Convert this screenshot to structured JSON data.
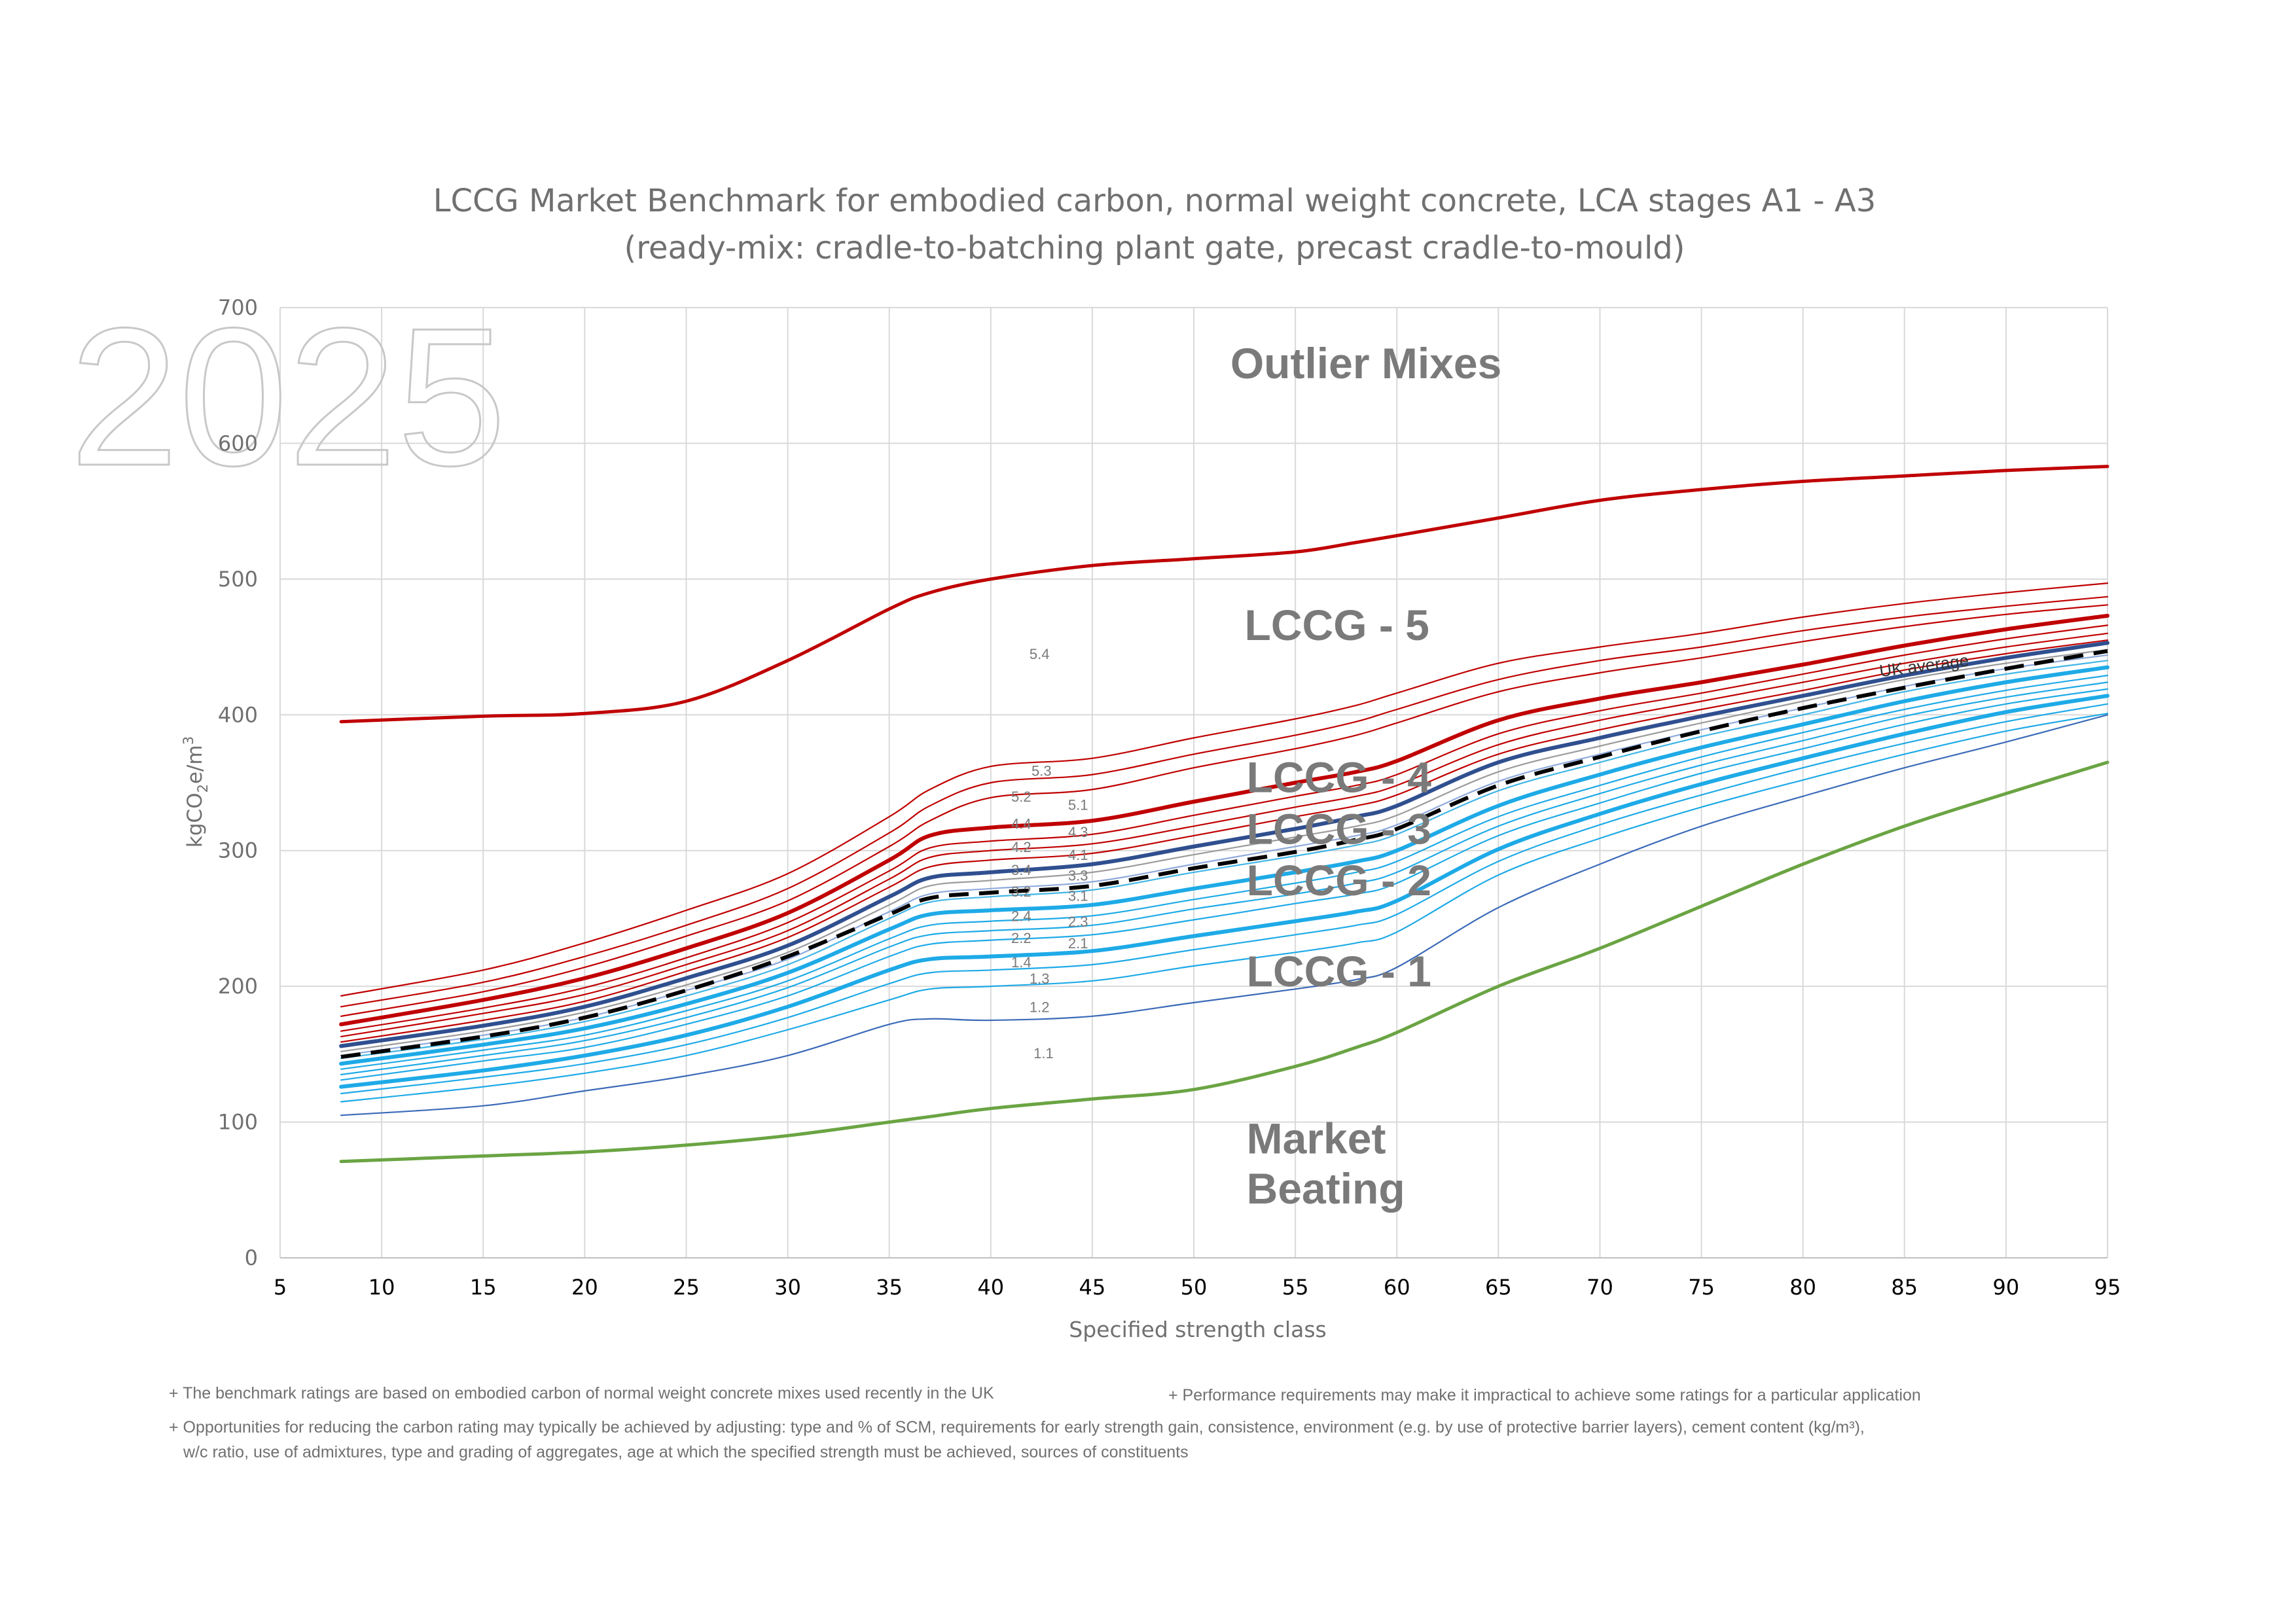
{
  "chart_data": {
    "type": "line",
    "title": "LCCG Market Benchmark for embodied carbon, normal weight concrete, LCA stages A1 - A3",
    "subtitle": "(ready-mix: cradle-to-batching plant gate, precast cradle-to-mould)",
    "xlabel": "Specified strength class",
    "ylabel": "kgCO2e/m3",
    "xlim": [
      5,
      95
    ],
    "ylim": [
      0,
      700
    ],
    "xticks": [
      "5",
      "10",
      "15",
      "20",
      "25",
      "30",
      "35",
      "40",
      "45",
      "50",
      "55",
      "60",
      "65",
      "70",
      "75",
      "80",
      "85",
      "90",
      "95"
    ],
    "yticks": [
      "0",
      "100",
      "200",
      "300",
      "400",
      "500",
      "600",
      "700"
    ],
    "grid": true,
    "watermark": "2025",
    "x": [
      8,
      15,
      20,
      25,
      30,
      35,
      37,
      40,
      45,
      50,
      55,
      58,
      60,
      65,
      70,
      75,
      80,
      85,
      90,
      95
    ],
    "series": [
      {
        "name": "Outlier boundary",
        "color": "#c00000",
        "width": 5,
        "values": [
          395,
          399,
          401,
          410,
          440,
          478,
          490,
          500,
          510,
          515,
          520,
          527,
          532,
          545,
          558,
          566,
          572,
          576,
          580,
          583
        ]
      },
      {
        "name": "5.4/5.3",
        "color": "#c00000",
        "width": 2.2,
        "values": [
          193,
          212,
          232,
          256,
          283,
          325,
          345,
          362,
          368,
          383,
          397,
          407,
          416,
          438,
          450,
          460,
          472,
          482,
          490,
          497
        ]
      },
      {
        "name": "5.3/5.2",
        "color": "#c00000",
        "width": 2.2,
        "values": [
          185,
          203,
          222,
          245,
          272,
          313,
          333,
          350,
          356,
          371,
          385,
          395,
          404,
          426,
          440,
          450,
          462,
          472,
          480,
          487
        ]
      },
      {
        "name": "5.2/5.1",
        "color": "#c00000",
        "width": 2.2,
        "values": [
          178,
          196,
          214,
          237,
          263,
          303,
          322,
          339,
          345,
          361,
          375,
          385,
          394,
          417,
          431,
          442,
          454,
          465,
          474,
          481
        ]
      },
      {
        "name": "LCCG 5/4 boundary",
        "color": "#c00000",
        "width": 6,
        "values": [
          172,
          190,
          206,
          228,
          254,
          293,
          311,
          317,
          322,
          336,
          350,
          358,
          366,
          396,
          412,
          424,
          437,
          451,
          463,
          473
        ]
      },
      {
        "name": "4.4/4.3",
        "color": "#c00000",
        "width": 2.2,
        "values": [
          167,
          184,
          199,
          221,
          247,
          285,
          302,
          307,
          312,
          326,
          340,
          348,
          356,
          386,
          403,
          416,
          430,
          444,
          456,
          466
        ]
      },
      {
        "name": "4.3/4.2",
        "color": "#c00000",
        "width": 2.2,
        "values": [
          163,
          180,
          194,
          216,
          241,
          279,
          295,
          300,
          305,
          318,
          332,
          340,
          348,
          378,
          396,
          410,
          424,
          438,
          450,
          460
        ]
      },
      {
        "name": "4.2/4.1",
        "color": "#c00000",
        "width": 2.2,
        "values": [
          159,
          175,
          189,
          211,
          236,
          273,
          288,
          293,
          298,
          311,
          325,
          333,
          341,
          371,
          389,
          404,
          418,
          433,
          445,
          455
        ]
      },
      {
        "name": "LCCG 4/3 boundary",
        "color": "#2f4f8f",
        "width": 6,
        "values": [
          156,
          171,
          185,
          206,
          230,
          266,
          280,
          284,
          290,
          303,
          316,
          325,
          333,
          365,
          383,
          399,
          414,
          429,
          442,
          453
        ]
      },
      {
        "name": "UK average",
        "color": "#000000",
        "width": 6,
        "dash": "30 16",
        "values": [
          148,
          163,
          177,
          197,
          222,
          253,
          265,
          269,
          274,
          287,
          299,
          308,
          316,
          348,
          369,
          388,
          405,
          420,
          434,
          447
        ]
      },
      {
        "name": "3.3",
        "color": "#9b9b9b",
        "width": 2.2,
        "values": [
          152,
          167,
          181,
          201,
          225,
          260,
          274,
          278,
          284,
          297,
          310,
          318,
          326,
          358,
          377,
          394,
          410,
          426,
          438,
          448
        ]
      },
      {
        "name": "3.2",
        "color": "#8faadc",
        "width": 2.2,
        "values": [
          149,
          164,
          177,
          197,
          220,
          255,
          268,
          272,
          277,
          290,
          303,
          311,
          319,
          351,
          371,
          389,
          405,
          421,
          434,
          444
        ]
      },
      {
        "name": "3.1",
        "color": "#41b6e6",
        "width": 2.2,
        "values": [
          147,
          161,
          174,
          193,
          216,
          250,
          262,
          266,
          271,
          284,
          296,
          304,
          312,
          344,
          365,
          384,
          400,
          417,
          430,
          440
        ]
      },
      {
        "name": "LCCG 3/2 boundary",
        "color": "#1eaae7",
        "width": 6,
        "values": [
          143,
          157,
          169,
          187,
          210,
          242,
          253,
          256,
          260,
          272,
          284,
          292,
          300,
          333,
          356,
          376,
          393,
          410,
          424,
          435
        ]
      },
      {
        "name": "2.4/2.3",
        "color": "#1eaae7",
        "width": 2.2,
        "values": [
          139,
          153,
          164,
          182,
          204,
          235,
          245,
          248,
          252,
          264,
          276,
          284,
          292,
          325,
          348,
          369,
          387,
          404,
          418,
          429
        ]
      },
      {
        "name": "2.3/2.2",
        "color": "#1eaae7",
        "width": 2.2,
        "values": [
          135,
          149,
          160,
          177,
          199,
          229,
          238,
          241,
          245,
          257,
          268,
          276,
          284,
          318,
          342,
          363,
          381,
          399,
          413,
          424
        ]
      },
      {
        "name": "2.2/2.1",
        "color": "#1eaae7",
        "width": 2.2,
        "values": [
          131,
          145,
          155,
          172,
          193,
          222,
          231,
          234,
          238,
          249,
          261,
          268,
          276,
          311,
          335,
          357,
          375,
          393,
          408,
          419
        ]
      },
      {
        "name": "LCCG 2/1 boundary",
        "color": "#1eaae7",
        "width": 6,
        "values": [
          126,
          138,
          149,
          164,
          185,
          212,
          220,
          222,
          226,
          237,
          248,
          255,
          263,
          301,
          327,
          349,
          368,
          386,
          402,
          414
        ]
      },
      {
        "name": "1.4/1.3",
        "color": "#1eaae7",
        "width": 2.2,
        "values": [
          121,
          133,
          143,
          157,
          177,
          202,
          210,
          212,
          216,
          227,
          238,
          245,
          253,
          292,
          319,
          341,
          361,
          379,
          395,
          408
        ]
      },
      {
        "name": "1.3/1.2",
        "color": "#1eaae7",
        "width": 2.2,
        "values": [
          115,
          126,
          136,
          149,
          168,
          190,
          198,
          200,
          204,
          215,
          225,
          232,
          240,
          282,
          309,
          332,
          352,
          371,
          388,
          401
        ]
      },
      {
        "name": "1.2/1.1",
        "color": "#3b6ab8",
        "width": 2.2,
        "values": [
          105,
          112,
          123,
          134,
          149,
          172,
          176,
          175,
          178,
          188,
          198,
          205,
          214,
          258,
          290,
          318,
          340,
          361,
          380,
          400
        ]
      },
      {
        "name": "Market beating boundary",
        "color": "#6aa443",
        "width": 5,
        "values": [
          71,
          75,
          78,
          83,
          90,
          100,
          104,
          110,
          117,
          124,
          141,
          155,
          166,
          200,
          228,
          259,
          290,
          318,
          342,
          365
        ]
      }
    ],
    "region_labels": [
      {
        "text": "Outlier Mixes",
        "x": 51.8,
        "y": 648
      },
      {
        "text": "LCCG - 5",
        "x": 52.5,
        "y": 455
      },
      {
        "text": "LCCG - 4",
        "x": 52.6,
        "y": 343
      },
      {
        "text": "LCCG - 3",
        "x": 52.6,
        "y": 305
      },
      {
        "text": "LCCG - 2",
        "x": 52.6,
        "y": 267
      },
      {
        "text": "LCCG - 1",
        "x": 52.6,
        "y": 200
      },
      {
        "text": "Market",
        "x": 52.6,
        "y": 77
      },
      {
        "text": "Beating",
        "x": 52.6,
        "y": 40
      }
    ],
    "sub_labels": [
      {
        "text": "5.4",
        "x": 42.4,
        "y": 441
      },
      {
        "text": "5.3",
        "x": 42.5,
        "y": 355
      },
      {
        "text": "5.2",
        "x": 41.5,
        "y": 336
      },
      {
        "text": "5.1",
        "x": 44.3,
        "y": 330
      },
      {
        "text": "4.4",
        "x": 41.5,
        "y": 316
      },
      {
        "text": "4.3",
        "x": 44.3,
        "y": 310
      },
      {
        "text": "4.2",
        "x": 41.5,
        "y": 299
      },
      {
        "text": "4.1",
        "x": 44.3,
        "y": 293
      },
      {
        "text": "3.4",
        "x": 41.5,
        "y": 282
      },
      {
        "text": "3.3",
        "x": 44.3,
        "y": 278
      },
      {
        "text": "3.2",
        "x": 41.5,
        "y": 266
      },
      {
        "text": "3.1",
        "x": 44.3,
        "y": 263
      },
      {
        "text": "2.4",
        "x": 41.5,
        "y": 248
      },
      {
        "text": "2.3",
        "x": 44.3,
        "y": 244
      },
      {
        "text": "2.2",
        "x": 41.5,
        "y": 232
      },
      {
        "text": "2.1",
        "x": 44.3,
        "y": 228
      },
      {
        "text": "1.4",
        "x": 41.5,
        "y": 214
      },
      {
        "text": "1.3",
        "x": 42.4,
        "y": 202
      },
      {
        "text": "1.2",
        "x": 42.4,
        "y": 181
      },
      {
        "text": "1.1",
        "x": 42.6,
        "y": 147
      }
    ],
    "uk_average_label": {
      "text": "UK average",
      "x": 86,
      "y": 432
    }
  },
  "notes": {
    "note1": "+ The benchmark ratings are based on embodied carbon of normal weight concrete mixes used recently in the UK",
    "note2": "+ Performance requirements may make it impractical to achieve some ratings for a particular application",
    "note3_line1": "+ Opportunities for reducing the carbon rating may typically be achieved by adjusting: type and % of SCM, requirements for early strength gain, consistence, environment (e.g. by use of protective barrier layers), cement content (kg/m³),",
    "note3_line2": "w/c ratio, use of admixtures, type and grading of aggregates, age at which the specified strength must be achieved, sources of constituents"
  }
}
